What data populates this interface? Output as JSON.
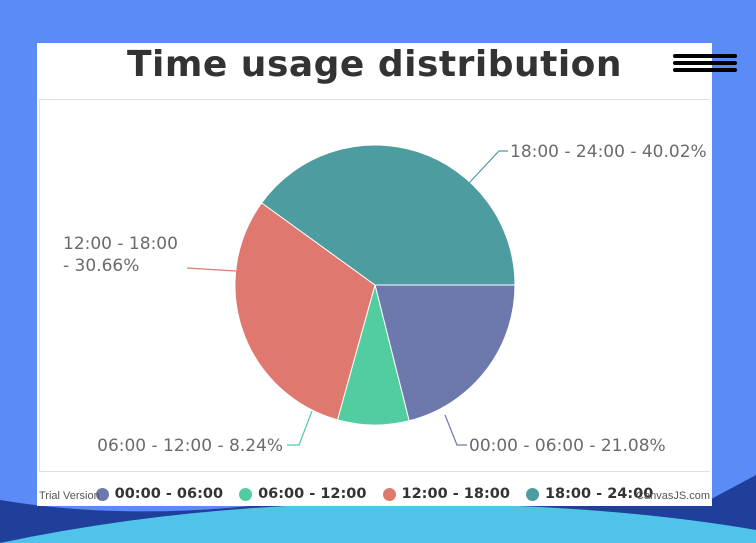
{
  "chart_data": {
    "type": "pie",
    "title": "Time usage distribution",
    "categories": [
      "00:00 - 06:00",
      "06:00 - 12:00",
      "12:00 - 18:00",
      "18:00 - 24:00"
    ],
    "values": [
      21.08,
      8.24,
      30.66,
      40.02
    ],
    "colors": [
      "#6d78ad",
      "#51cda0",
      "#df7970",
      "#4c9ca0"
    ],
    "data_labels": [
      "00:00 - 06:00 - 21.08%",
      "06:00 - 12:00 - 8.24%",
      [
        "12:00 - 18:00",
        "- 30.66%"
      ],
      "18:00 - 24:00 - 40.02%"
    ],
    "legend_placement": "bottom",
    "start_angle_deg": 0
  },
  "menu": {
    "icon": "hamburger-icon"
  },
  "footer": {
    "trial_text": "Trial Version",
    "credit_text": "CanvasJS.com"
  },
  "theme": {
    "page_bg": "#5b8bf7",
    "wave_light": "#4fc3ea",
    "wave_dark": "#203f9a"
  }
}
